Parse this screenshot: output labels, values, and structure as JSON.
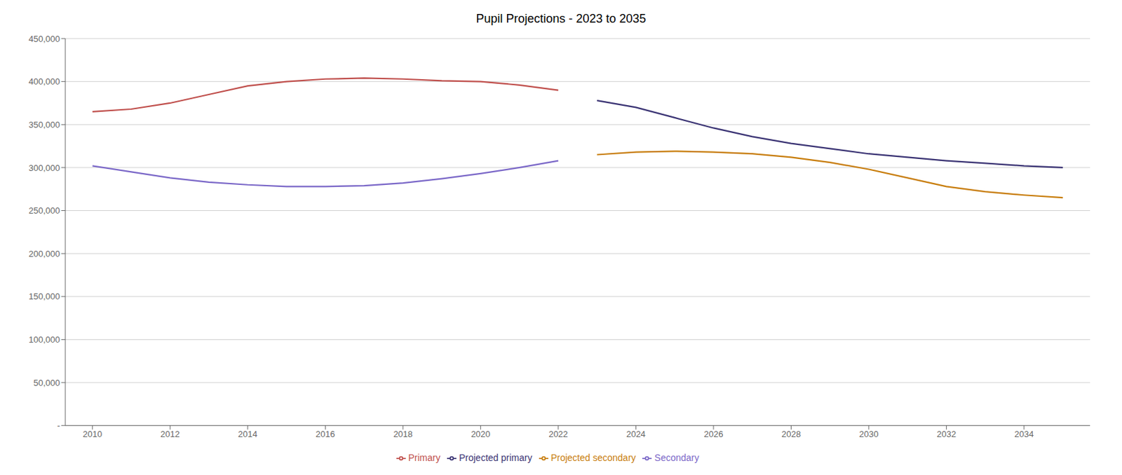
{
  "chart_data": {
    "type": "line",
    "title": "Pupil Projections - 2023 to 2035",
    "series": [
      {
        "name": "Primary",
        "color": "#C0504D",
        "x": [
          2010,
          2011,
          2012,
          2013,
          2014,
          2015,
          2016,
          2017,
          2018,
          2019,
          2020,
          2021,
          2022
        ],
        "values": [
          365000,
          368000,
          375000,
          385000,
          395000,
          400000,
          403000,
          404000,
          403000,
          401000,
          400000,
          396000,
          390000
        ]
      },
      {
        "name": "Projected primary",
        "color": "#3B3474",
        "x": [
          2023,
          2024,
          2025,
          2026,
          2027,
          2028,
          2029,
          2030,
          2031,
          2032,
          2033,
          2034,
          2035
        ],
        "values": [
          378000,
          370000,
          358000,
          346000,
          336000,
          328000,
          322000,
          316000,
          312000,
          308000,
          305000,
          302000,
          300000
        ]
      },
      {
        "name": "Secondary",
        "color": "#7B68C8",
        "x": [
          2010,
          2011,
          2012,
          2013,
          2014,
          2015,
          2016,
          2017,
          2018,
          2019,
          2020,
          2021,
          2022
        ],
        "values": [
          302000,
          295000,
          288000,
          283000,
          280000,
          278000,
          278000,
          279000,
          282000,
          287000,
          293000,
          300000,
          308000
        ]
      },
      {
        "name": "Projected secondary",
        "color": "#C87E0E",
        "x": [
          2023,
          2024,
          2025,
          2026,
          2027,
          2028,
          2029,
          2030,
          2031,
          2032,
          2033,
          2034,
          2035
        ],
        "values": [
          315000,
          318000,
          319000,
          318000,
          316000,
          312000,
          306000,
          298000,
          288000,
          278000,
          272000,
          268000,
          265000
        ]
      }
    ],
    "xlim": [
      2009.3,
      2035.7
    ],
    "xticks": [
      2010,
      2012,
      2014,
      2016,
      2018,
      2020,
      2022,
      2024,
      2026,
      2028,
      2030,
      2032,
      2034
    ],
    "ylim": [
      0,
      450000
    ],
    "yticks": [
      {
        "value": 0,
        "label": "-"
      },
      {
        "value": 50000,
        "label": "50,000"
      },
      {
        "value": 100000,
        "label": "100,000"
      },
      {
        "value": 150000,
        "label": "150,000"
      },
      {
        "value": 200000,
        "label": "200,000"
      },
      {
        "value": 250000,
        "label": "250,000"
      },
      {
        "value": 300000,
        "label": "300,000"
      },
      {
        "value": 350000,
        "label": "350,000"
      },
      {
        "value": 400000,
        "label": "400,000"
      },
      {
        "value": 450000,
        "label": "450,000"
      }
    ],
    "grid": "y",
    "legend": "bottom"
  }
}
